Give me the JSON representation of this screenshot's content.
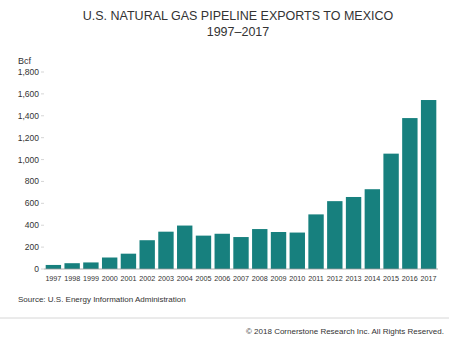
{
  "chart_data": {
    "type": "bar",
    "title": "U.S. NATURAL GAS PIPELINE EXPORTS TO MEXICO",
    "subtitle": "1997–2017",
    "y_label": "Bcf",
    "source": "Source:  U.S. Energy Information Administration",
    "copyright": "© 2018 Cornerstone Research Inc. All Rights Reserved.",
    "categories": [
      "1997",
      "1998",
      "1999",
      "2000",
      "2001",
      "2002",
      "2003",
      "2004",
      "2005",
      "2006",
      "2007",
      "2008",
      "2009",
      "2010",
      "2011",
      "2012",
      "2013",
      "2014",
      "2015",
      "2016",
      "2017"
    ],
    "values": [
      37,
      53,
      60,
      105,
      140,
      263,
      341,
      397,
      305,
      322,
      292,
      365,
      338,
      333,
      499,
      620,
      658,
      729,
      1054,
      1379,
      1544
    ],
    "color": "#17807e",
    "ylim": [
      0,
      1800
    ],
    "yticks": [
      0,
      200,
      400,
      600,
      800,
      {
        "value": 1000,
        "label": "1,000"
      },
      {
        "value": 1200,
        "label": "1,200"
      },
      {
        "value": 1400,
        "label": "1,400"
      },
      {
        "value": 1600,
        "label": "1,600"
      },
      {
        "value": 1800,
        "label": "1,800"
      }
    ],
    "grid": false
  }
}
